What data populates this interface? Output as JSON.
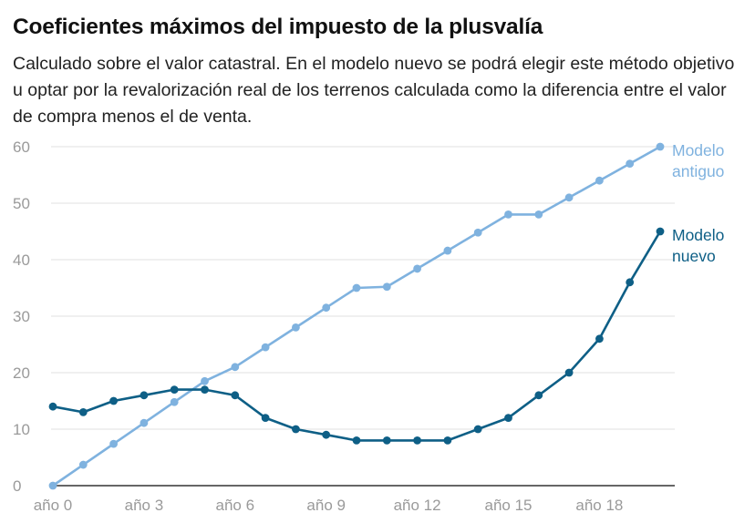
{
  "title": "Coeficientes máximos del impuesto de la plusvalía",
  "subtitle": "Calculado sobre el valor catastral. En el modelo nuevo se podrá elegir este método objetivo u optar por la revalorización real de los terrenos calculada como la diferencia entre el valor de compra menos el de venta.",
  "chart_data": {
    "type": "line",
    "title": "Coeficientes máximos del impuesto de la plusvalía",
    "subtitle": "Calculado sobre el valor catastral. En el modelo nuevo se podrá elegir este método objetivo u optar por la revalorización real de los terrenos calculada como la diferencia entre el valor de compra menos el de venta.",
    "x": [
      0,
      1,
      2,
      3,
      4,
      5,
      6,
      7,
      8,
      9,
      10,
      11,
      12,
      13,
      14,
      15,
      16,
      17,
      18,
      19,
      20
    ],
    "x_tick_values": [
      0,
      3,
      6,
      9,
      12,
      15,
      18
    ],
    "x_tick_labels": [
      "año 0",
      "año 3",
      "año 6",
      "año 9",
      "año 12",
      "año 15",
      "año 18"
    ],
    "xlim": [
      0,
      20
    ],
    "ylim": [
      0,
      60
    ],
    "y_ticks": [
      0,
      10,
      20,
      30,
      40,
      50,
      60
    ],
    "grid": "horizontal",
    "series": [
      {
        "name_lines": [
          "Modelo",
          "antiguo"
        ],
        "color": "#7fb2df",
        "values": [
          0,
          3.7,
          7.4,
          11.1,
          14.8,
          18.5,
          21,
          24.5,
          28,
          31.5,
          35,
          35.2,
          38.4,
          41.6,
          44.8,
          48,
          48,
          51,
          54,
          57,
          60
        ]
      },
      {
        "name_lines": [
          "Modelo",
          "nuevo"
        ],
        "color": "#0e5f86",
        "values": [
          14,
          13,
          15,
          16,
          17,
          17,
          16,
          12,
          10,
          9,
          8,
          8,
          8,
          8,
          10,
          12,
          16,
          20,
          26,
          36,
          45
        ]
      }
    ]
  }
}
